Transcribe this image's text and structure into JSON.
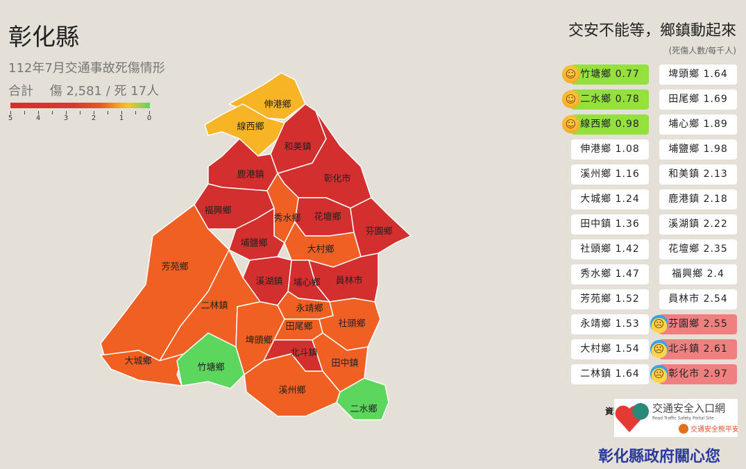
{
  "header": {
    "title": "彰化縣",
    "subtitle": "112年7月交通事故死傷情形",
    "total": "合計　 傷 2,581 / 死 17人"
  },
  "legend": {
    "ticks": [
      "5",
      "4",
      "3",
      "2",
      "1",
      "0"
    ],
    "colors": {
      "high": "#d32f2f",
      "mid": "#f06022",
      "low": "#f7b526",
      "best": "#5cd65c"
    }
  },
  "slogan": "交安不能等，鄉鎮動起來",
  "unit": "(死傷人數/每千人)",
  "ranking": [
    {
      "label": "竹塘鄉 0.77",
      "status": "good"
    },
    {
      "label": "二水鄉 0.78",
      "status": "good"
    },
    {
      "label": "線西鄉 0.98",
      "status": "good"
    },
    {
      "label": "伸港鄉 1.08"
    },
    {
      "label": "溪州鄉 1.16"
    },
    {
      "label": "大城鄉 1.24"
    },
    {
      "label": "田中鎮 1.36"
    },
    {
      "label": "社頭鄉 1.42"
    },
    {
      "label": "秀水鄉 1.47"
    },
    {
      "label": "芳苑鄉 1.52"
    },
    {
      "label": "永靖鄉 1.53"
    },
    {
      "label": "大村鄉 1.54"
    },
    {
      "label": "二林鎮 1.64"
    },
    {
      "label": "埤頭鄉 1.64"
    },
    {
      "label": "田尾鄉 1.69"
    },
    {
      "label": "埔心鄉 1.89"
    },
    {
      "label": "埔鹽鄉 1.98"
    },
    {
      "label": "和美鎮 2.13"
    },
    {
      "label": "鹿港鎮 2.18"
    },
    {
      "label": "溪湖鎮 2.22"
    },
    {
      "label": "花壇鄉 2.35"
    },
    {
      "label": "福興鄉 2.4"
    },
    {
      "label": "員林市 2.54"
    },
    {
      "label": "芬園鄉 2.55",
      "status": "bad"
    },
    {
      "label": "北斗鎮 2.61",
      "status": "bad"
    },
    {
      "label": "彰化市 2.97",
      "status": "bad"
    }
  ],
  "map": {
    "regions": [
      {
        "name": "芳苑鄉",
        "level": "mid"
      },
      {
        "name": "二林鎮",
        "level": "mid"
      },
      {
        "name": "大城鄉",
        "level": "mid"
      },
      {
        "name": "竹塘鄉",
        "level": "best"
      },
      {
        "name": "伸港鄉",
        "level": "low"
      },
      {
        "name": "線西鄉",
        "level": "low"
      },
      {
        "name": "和美鎮",
        "level": "high"
      },
      {
        "name": "鹿港鎮",
        "level": "high"
      },
      {
        "name": "彰化市",
        "level": "high"
      },
      {
        "name": "福興鄉",
        "level": "high"
      },
      {
        "name": "秀水鄉",
        "level": "mid"
      },
      {
        "name": "花壇鄉",
        "level": "high"
      },
      {
        "name": "芬園鄉",
        "level": "high"
      },
      {
        "name": "埔鹽鄉",
        "level": "high"
      },
      {
        "name": "大村鄉",
        "level": "mid"
      },
      {
        "name": "員林市",
        "level": "high"
      },
      {
        "name": "埔心鄉",
        "level": "high"
      },
      {
        "name": "溪湖鎮",
        "level": "high"
      },
      {
        "name": "埤頭鄉",
        "level": "mid"
      },
      {
        "name": "永靖鄉",
        "level": "mid"
      },
      {
        "name": "田尾鄉",
        "level": "mid"
      },
      {
        "name": "北斗鎮",
        "level": "high"
      },
      {
        "name": "社頭鄉",
        "level": "mid"
      },
      {
        "name": "田中鎮",
        "level": "mid"
      },
      {
        "name": "溪州鄉",
        "level": "mid"
      },
      {
        "name": "二水鄉",
        "level": "best"
      }
    ]
  },
  "source": {
    "label": "資料來源：",
    "logo_title": "交通安全入口網",
    "logo_sub": "Road Traffic Safety Portal Site",
    "logo_tag": "交通安全熊平安"
  },
  "footer": "彰化縣政府關心您"
}
